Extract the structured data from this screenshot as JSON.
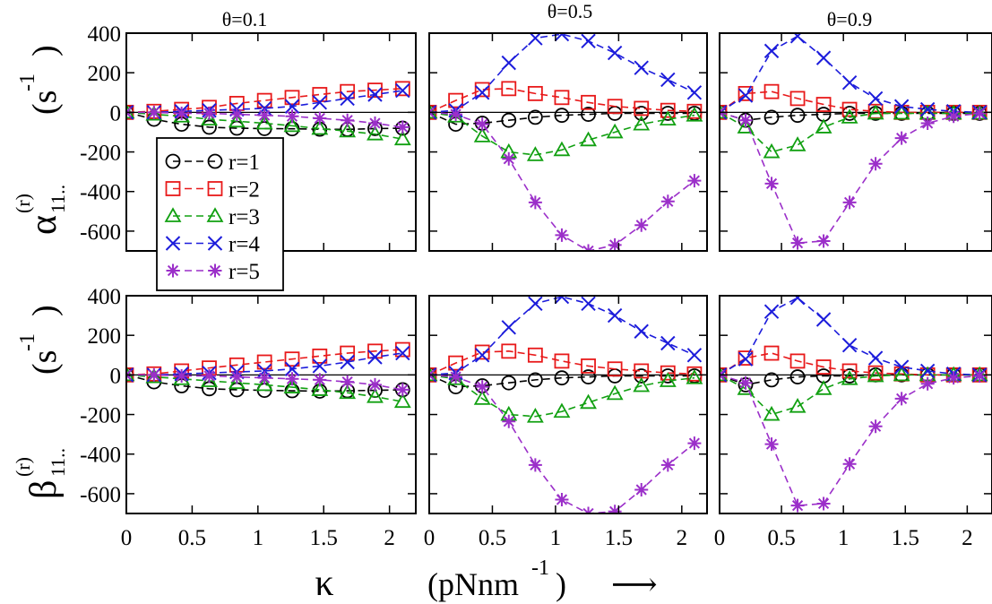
{
  "chart_data": {
    "type": "line",
    "x": [
      0,
      0.21,
      0.42,
      0.63,
      0.84,
      1.05,
      1.26,
      1.47,
      1.68,
      1.89,
      2.1
    ],
    "xlim": [
      0,
      2.2
    ],
    "xticks": [
      0,
      0.5,
      1,
      1.5,
      2
    ],
    "xtick_labels": [
      "0",
      "0.5",
      "1",
      "1.5",
      "2"
    ],
    "ylim": [
      -700,
      400
    ],
    "yticks": [
      400,
      200,
      0,
      -200,
      -400,
      -600
    ],
    "ytick_labels": [
      "400",
      "200",
      "0",
      "-200",
      "-400",
      "-600"
    ],
    "xlabel": {
      "symbol": "κ",
      "unit_open": "(pNnm",
      "unit_exp": "-1",
      "unit_close": ")"
    },
    "rows": [
      {
        "symbol": "α",
        "sup": "(r)",
        "sub": "11..",
        "unit_open": "(s",
        "unit_exp": "-1",
        "unit_close": ")"
      },
      {
        "symbol": "β",
        "sup": "(r)",
        "sub": "11..",
        "unit_open": "(s",
        "unit_exp": "-1",
        "unit_close": ")"
      }
    ],
    "column_titles": [
      "θ=0.1",
      "θ=0.5",
      "θ=0.9"
    ],
    "legend": {
      "placement": "left-middle of top-left panel"
    },
    "series_styles": [
      {
        "name": "r=1",
        "color": "#000000",
        "marker": "circle"
      },
      {
        "name": "r=2",
        "color": "#e8191a",
        "marker": "square"
      },
      {
        "name": "r=3",
        "color": "#11a011",
        "marker": "triangle"
      },
      {
        "name": "r=4",
        "color": "#1c1cdb",
        "marker": "x"
      },
      {
        "name": "r=5",
        "color": "#9b2fc9",
        "marker": "star"
      }
    ],
    "panels": [
      {
        "row": 0,
        "col": 0,
        "series": [
          {
            "name": "r=1",
            "values": [
              0,
              -35,
              -60,
              -75,
              -80,
              -82,
              -83,
              -85,
              -86,
              -82,
              -80
            ]
          },
          {
            "name": "r=2",
            "values": [
              0,
              5,
              15,
              25,
              45,
              60,
              75,
              90,
              105,
              112,
              120
            ]
          },
          {
            "name": "r=3",
            "values": [
              0,
              -10,
              -20,
              -35,
              -45,
              -55,
              -68,
              -82,
              -95,
              -110,
              -135
            ]
          },
          {
            "name": "r=4",
            "values": [
              0,
              0,
              5,
              10,
              15,
              20,
              30,
              50,
              70,
              90,
              110
            ]
          },
          {
            "name": "r=5",
            "values": [
              0,
              0,
              -5,
              -5,
              -10,
              -15,
              -20,
              -30,
              -40,
              -55,
              -75
            ]
          }
        ]
      },
      {
        "row": 0,
        "col": 1,
        "series": [
          {
            "name": "r=1",
            "values": [
              0,
              -60,
              -55,
              -40,
              -25,
              -15,
              -10,
              -5,
              -5,
              -5,
              -5
            ]
          },
          {
            "name": "r=2",
            "values": [
              0,
              60,
              115,
              120,
              95,
              75,
              50,
              30,
              20,
              10,
              5
            ]
          },
          {
            "name": "r=3",
            "values": [
              0,
              -20,
              -120,
              -200,
              -215,
              -190,
              -140,
              -100,
              -60,
              -35,
              -15
            ]
          },
          {
            "name": "r=4",
            "values": [
              0,
              10,
              100,
              250,
              375,
              395,
              360,
              300,
              225,
              165,
              100
            ]
          },
          {
            "name": "r=5",
            "values": [
              0,
              -10,
              -60,
              -235,
              -455,
              -620,
              -700,
              -670,
              -570,
              -450,
              -345
            ]
          }
        ]
      },
      {
        "row": 0,
        "col": 2,
        "series": [
          {
            "name": "r=1",
            "values": [
              0,
              -40,
              -25,
              -15,
              -10,
              -5,
              -5,
              -5,
              -5,
              -5,
              -5
            ]
          },
          {
            "name": "r=2",
            "values": [
              0,
              95,
              105,
              70,
              40,
              15,
              5,
              0,
              0,
              0,
              0
            ]
          },
          {
            "name": "r=3",
            "values": [
              0,
              -75,
              -200,
              -165,
              -75,
              -25,
              -5,
              -5,
              -5,
              -5,
              -5
            ]
          },
          {
            "name": "r=4",
            "values": [
              0,
              85,
              310,
              385,
              275,
              150,
              70,
              30,
              15,
              5,
              0
            ]
          },
          {
            "name": "r=5",
            "values": [
              0,
              -40,
              -360,
              -660,
              -650,
              -455,
              -260,
              -130,
              -55,
              -20,
              -5
            ]
          }
        ]
      },
      {
        "row": 1,
        "col": 0,
        "series": [
          {
            "name": "r=1",
            "values": [
              0,
              -35,
              -55,
              -70,
              -75,
              -78,
              -80,
              -82,
              -80,
              -78,
              -75
            ]
          },
          {
            "name": "r=2",
            "values": [
              0,
              5,
              20,
              35,
              50,
              65,
              80,
              95,
              110,
              120,
              128
            ]
          },
          {
            "name": "r=3",
            "values": [
              0,
              -10,
              -20,
              -30,
              -40,
              -50,
              -62,
              -75,
              -90,
              -110,
              -135
            ]
          },
          {
            "name": "r=4",
            "values": [
              0,
              0,
              5,
              10,
              15,
              20,
              30,
              45,
              65,
              90,
              110
            ]
          },
          {
            "name": "r=5",
            "values": [
              0,
              0,
              -5,
              -5,
              -10,
              -15,
              -20,
              -25,
              -35,
              -50,
              -75
            ]
          }
        ]
      },
      {
        "row": 1,
        "col": 1,
        "series": [
          {
            "name": "r=1",
            "values": [
              0,
              -60,
              -55,
              -40,
              -25,
              -15,
              -10,
              -5,
              -5,
              -5,
              -5
            ]
          },
          {
            "name": "r=2",
            "values": [
              0,
              60,
              115,
              120,
              100,
              70,
              45,
              30,
              20,
              10,
              5
            ]
          },
          {
            "name": "r=3",
            "values": [
              0,
              -20,
              -120,
              -200,
              -210,
              -185,
              -140,
              -95,
              -55,
              -30,
              -15
            ]
          },
          {
            "name": "r=4",
            "values": [
              0,
              10,
              100,
              240,
              360,
              395,
              360,
              300,
              220,
              160,
              100
            ]
          },
          {
            "name": "r=5",
            "values": [
              0,
              -10,
              -60,
              -235,
              -455,
              -630,
              -700,
              -690,
              -580,
              -455,
              -345
            ]
          }
        ]
      },
      {
        "row": 1,
        "col": 2,
        "series": [
          {
            "name": "r=1",
            "values": [
              0,
              -50,
              -25,
              -10,
              -5,
              -5,
              0,
              0,
              0,
              0,
              0
            ]
          },
          {
            "name": "r=2",
            "values": [
              0,
              85,
              110,
              70,
              40,
              20,
              10,
              5,
              0,
              0,
              0
            ]
          },
          {
            "name": "r=3",
            "values": [
              0,
              -70,
              -200,
              -160,
              -70,
              -20,
              -5,
              0,
              0,
              0,
              0
            ]
          },
          {
            "name": "r=4",
            "values": [
              0,
              80,
              320,
              390,
              280,
              150,
              85,
              40,
              20,
              5,
              0
            ]
          },
          {
            "name": "r=5",
            "values": [
              0,
              -40,
              -350,
              -660,
              -650,
              -450,
              -260,
              -120,
              -45,
              -15,
              -5
            ]
          }
        ]
      }
    ]
  },
  "arrow": "⟶"
}
